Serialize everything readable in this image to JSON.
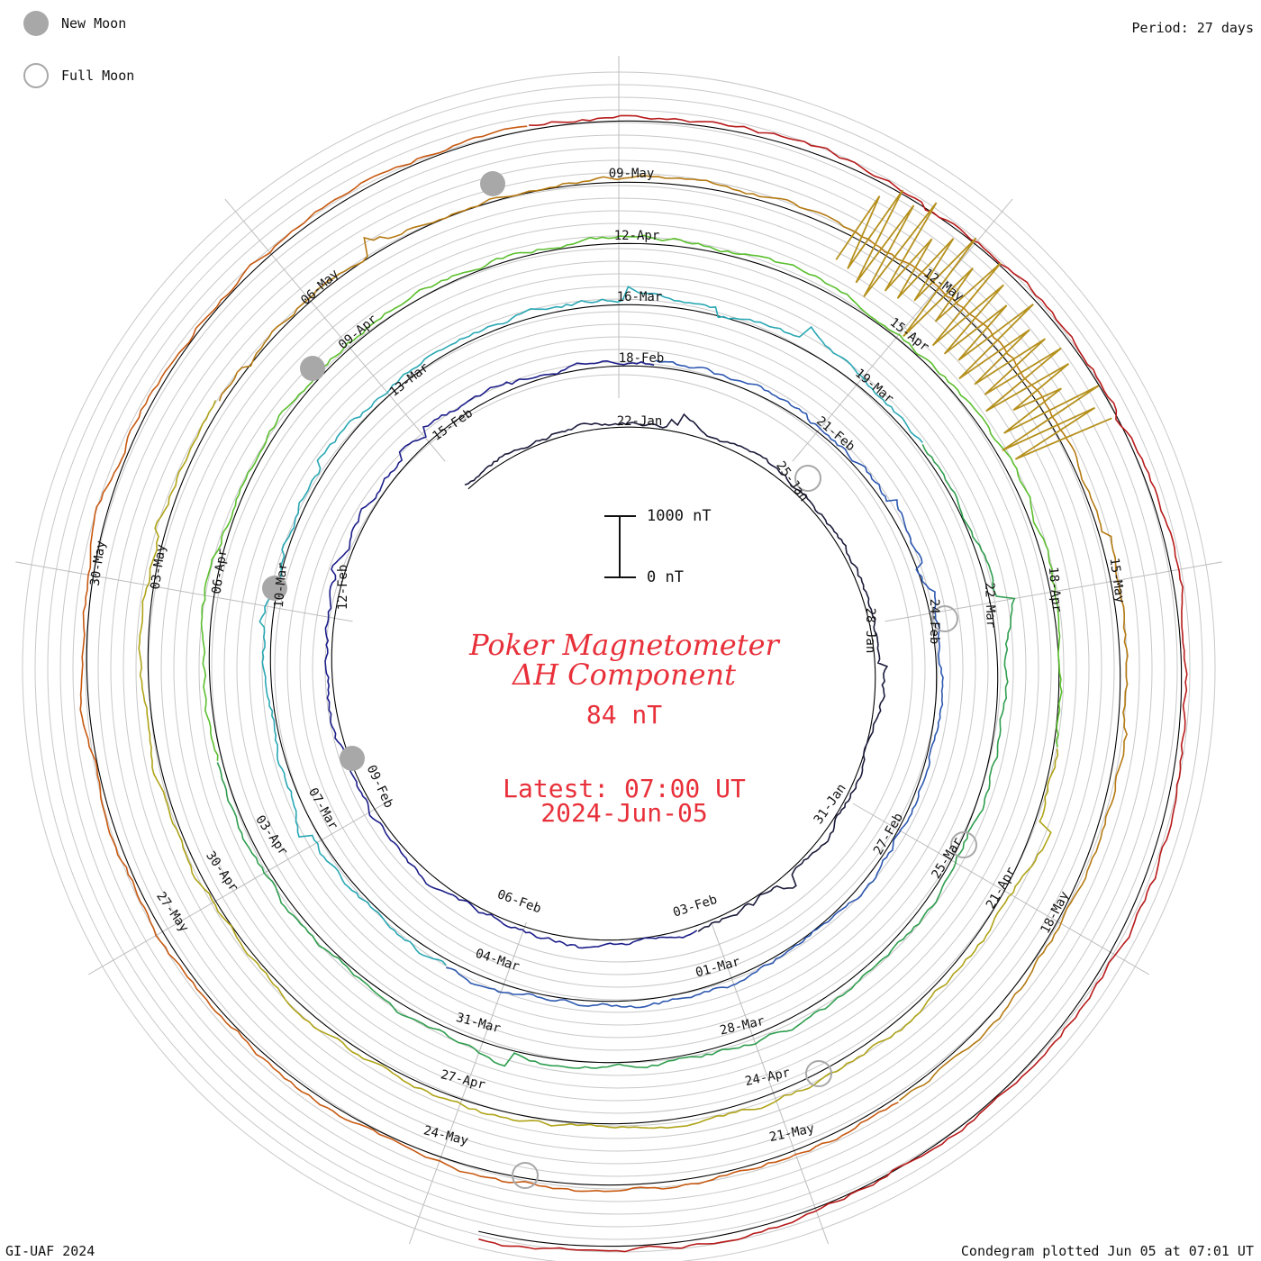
{
  "header": {
    "period_label": "Period: 27 days"
  },
  "legend": {
    "new_moon_label": "New Moon",
    "full_moon_label": "Full Moon"
  },
  "center": {
    "title_line1": "Poker Magnetometer",
    "title_line2": "ΔH Component",
    "value_text": "84 nT",
    "latest_line1": "Latest: 07:00 UT",
    "latest_line2": "2024-Jun-05"
  },
  "scale_bar": {
    "top_label": "1000 nT",
    "bottom_label": "0 nT"
  },
  "footer": {
    "left": "GI-UAF 2024",
    "right": "Condegram plotted Jun 05 at 07:01 UT"
  },
  "colors": {
    "rotation_colors": [
      "#1a1a3a",
      "#1d1f8a",
      "#2d58b0",
      "#2aa8b4",
      "#2f9e4f",
      "#5bbf2e",
      "#b0a419",
      "#b57a12",
      "#c85a12",
      "#b81a1a"
    ],
    "moon_marker": "#a8a8a8",
    "title": "#e8303a"
  },
  "chart_data": {
    "type": "condegram",
    "period_days": 27,
    "units": "nT",
    "scale_bar_nT": [
      0,
      1000
    ],
    "latest_value_nT": 84,
    "rotations": [
      {
        "index": 1,
        "date_labels": [
          "22-Jan",
          "25-Jan",
          "28-Jan",
          "31-Jan"
        ]
      },
      {
        "index": 2,
        "date_labels": [
          "18-Feb",
          "21-Feb",
          "24-Feb",
          "27-Feb",
          "03-Feb",
          "06-Feb",
          "09-Feb",
          "12-Feb",
          "15-Feb"
        ]
      },
      {
        "index": 3,
        "date_labels": [
          "16-Mar",
          "19-Mar",
          "22-Mar",
          "25-Mar",
          "01-Mar",
          "04-Mar",
          "07-Mar",
          "10-Mar",
          "13-Mar"
        ]
      },
      {
        "index": 4,
        "date_labels": [
          "12-Apr",
          "15-Apr",
          "18-Apr",
          "21-Apr",
          "28-Mar",
          "31-Mar",
          "03-Apr",
          "06-Apr",
          "09-Apr"
        ]
      },
      {
        "index": 5,
        "date_labels": [
          "09-May",
          "12-May",
          "15-May",
          "18-May",
          "24-Apr",
          "27-Apr",
          "30-Apr",
          "03-May",
          "06-May"
        ]
      },
      {
        "index": 6,
        "date_labels": [
          "21-May",
          "24-May",
          "27-May",
          "30-May"
        ]
      }
    ],
    "new_moon_dates": [
      "09-Feb",
      "10-Mar",
      "08-Apr",
      "08-May"
    ],
    "full_moon_dates": [
      "25-Jan",
      "24-Feb",
      "25-Mar",
      "23-Apr",
      "23-May"
    ]
  }
}
